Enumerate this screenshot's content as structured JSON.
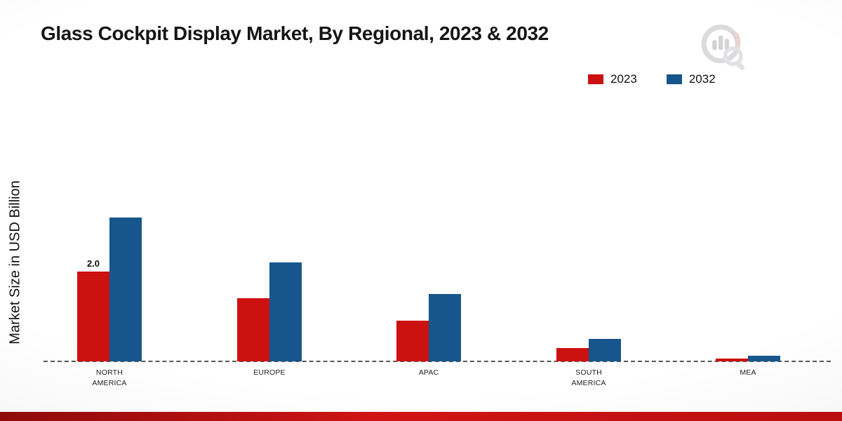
{
  "title": "Glass Cockpit Display Market, By Regional, 2023 & 2032",
  "y_axis_label": "Market Size in USD Billion",
  "watermark_icon": "bar-chart-magnifier-logo",
  "footer_color": "#c01010",
  "chart_data": {
    "type": "bar",
    "title": "Glass Cockpit Display Market, By Regional, 2023 & 2032",
    "xlabel": "",
    "ylabel": "Market Size in USD Billion",
    "categories": [
      "NORTH AMERICA",
      "EUROPE",
      "APAC",
      "SOUTH AMERICA",
      "MEA"
    ],
    "series": [
      {
        "name": "2023",
        "color": "#cc1111",
        "values": [
          2.0,
          1.4,
          0.9,
          0.3,
          0.07
        ],
        "labels": [
          "2.0",
          "",
          "",
          "",
          ""
        ]
      },
      {
        "name": "2032",
        "color": "#17568c",
        "values": [
          3.2,
          2.2,
          1.5,
          0.5,
          0.12
        ],
        "labels": [
          "",
          "",
          "",
          "",
          ""
        ]
      }
    ],
    "ylim": [
      0,
      3.5
    ],
    "grid": false,
    "legend_position": "top-right",
    "baseline_style": "dashed"
  }
}
